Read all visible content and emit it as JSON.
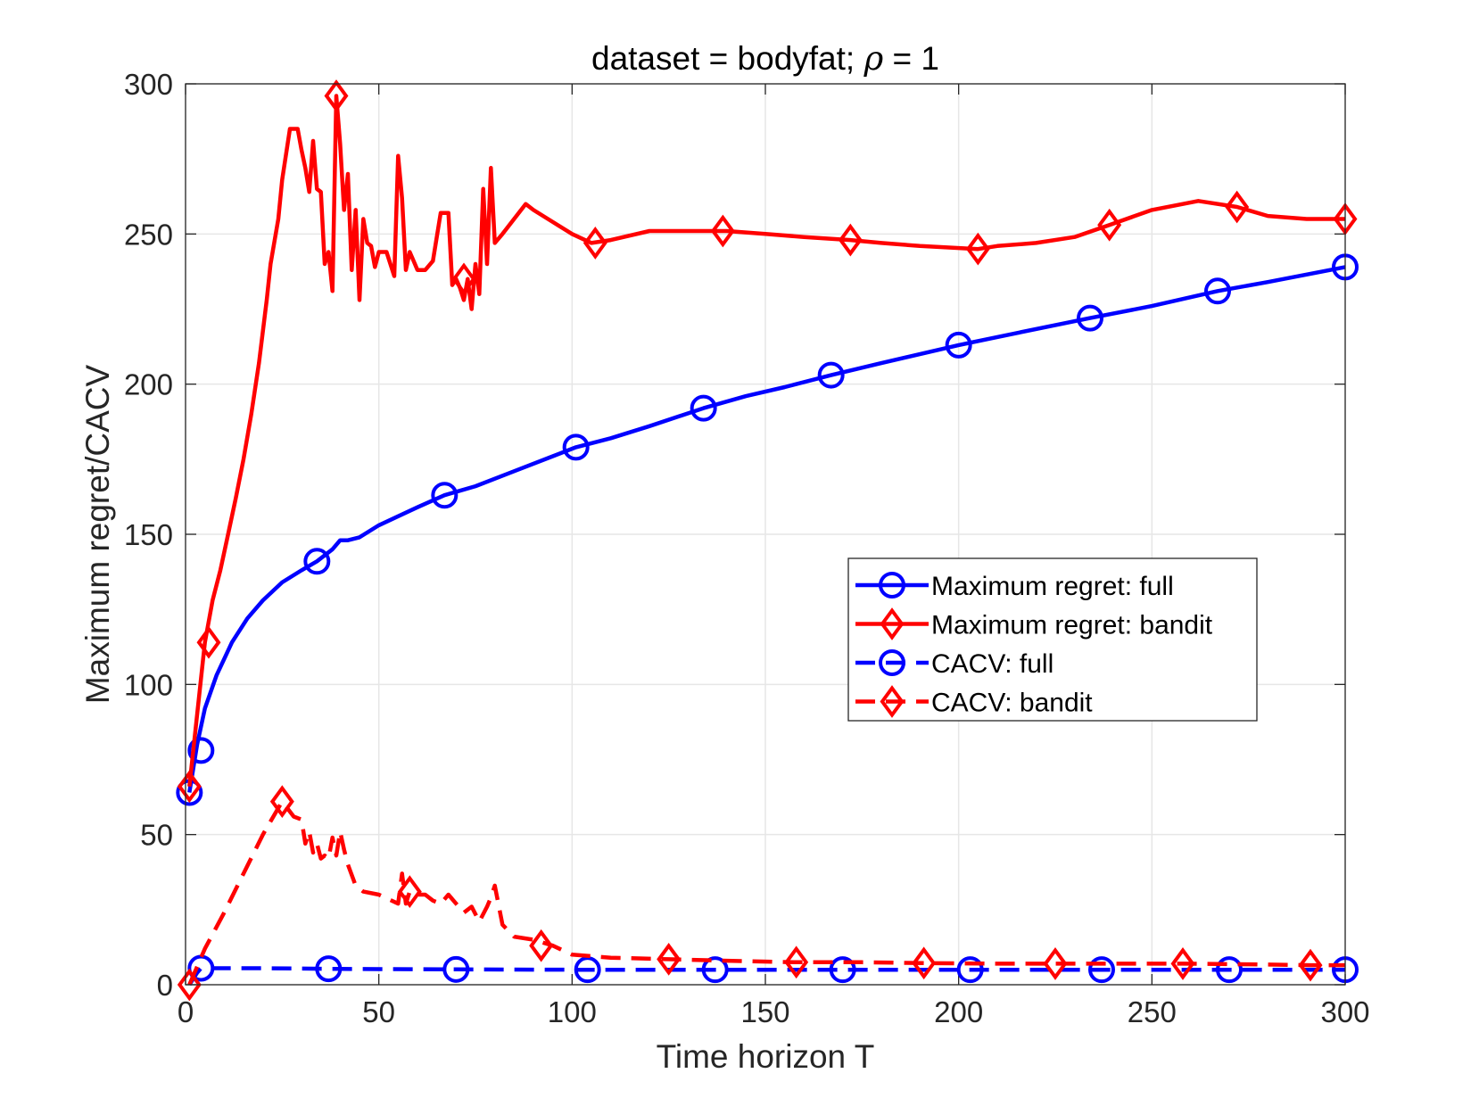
{
  "chart_data": {
    "type": "line",
    "title_prefix": "dataset = bodyfat; ",
    "title_symbol": "ρ",
    "title_suffix": " = 1",
    "xlabel": "Time horizon T",
    "ylabel": "Maximum regret/CACV",
    "xlim": [
      0,
      300
    ],
    "ylim": [
      0,
      300
    ],
    "xticks": [
      0,
      50,
      100,
      150,
      200,
      250,
      300
    ],
    "yticks": [
      0,
      50,
      100,
      150,
      200,
      250,
      300
    ],
    "xtick_labels": [
      "0",
      "50",
      "100",
      "150",
      "200",
      "250",
      "300"
    ],
    "ytick_labels": [
      "0",
      "50",
      "100",
      "150",
      "200",
      "250",
      "300"
    ],
    "grid": true,
    "legend_position": "right-center",
    "series": [
      {
        "name": "Maximum regret: full",
        "color": "#0000FF",
        "style": "solid",
        "marker": "circle",
        "x": [
          1,
          3,
          5,
          8,
          12,
          16,
          20,
          25,
          30,
          34,
          38,
          40,
          42,
          45,
          50,
          55,
          60,
          67,
          75,
          85,
          95,
          101,
          110,
          120,
          134,
          145,
          155,
          167,
          180,
          200,
          215,
          234,
          250,
          267,
          280,
          300
        ],
        "y": [
          64,
          80,
          92,
          103,
          114,
          122,
          128,
          134,
          138,
          141,
          145,
          148,
          148,
          149,
          153,
          156,
          159,
          163,
          166,
          171,
          176,
          179,
          182,
          186,
          192,
          196,
          199,
          203,
          207,
          213,
          217,
          222,
          226,
          231,
          234,
          239
        ],
        "marker_x": [
          1,
          4,
          34,
          67,
          101,
          134,
          167,
          200,
          234,
          267,
          300
        ],
        "marker_y": [
          64,
          78,
          141,
          163,
          179,
          192,
          203,
          213,
          222,
          231,
          239
        ]
      },
      {
        "name": "Maximum regret: bandit",
        "color": "#FF0000",
        "style": "solid",
        "marker": "diamond",
        "x": [
          1,
          3,
          5,
          7,
          9,
          11,
          13,
          15,
          17,
          19,
          21,
          22,
          24,
          25,
          27,
          29,
          30,
          31,
          32,
          33,
          34,
          35,
          36,
          37,
          38,
          39,
          40,
          41,
          42,
          43,
          44,
          45,
          46,
          47,
          48,
          49,
          50,
          52,
          54,
          55,
          56,
          57,
          58,
          59,
          60,
          62,
          64,
          66,
          68,
          69,
          70,
          71,
          72,
          73,
          74,
          75,
          76,
          77,
          78,
          79,
          80,
          82,
          85,
          88,
          90,
          95,
          100,
          105,
          110,
          120,
          130,
          140,
          150,
          160,
          172,
          180,
          190,
          205,
          210,
          220,
          230,
          239,
          250,
          262,
          272,
          280,
          290,
          300
        ],
        "y": [
          66,
          90,
          114,
          128,
          138,
          150,
          162,
          175,
          190,
          207,
          228,
          240,
          255,
          268,
          285,
          285,
          278,
          272,
          264,
          281,
          265,
          264,
          240,
          244,
          231,
          296,
          280,
          258,
          270,
          238,
          258,
          228,
          255,
          247,
          246,
          239,
          244,
          244,
          236,
          276,
          262,
          238,
          244,
          241,
          238,
          238,
          241,
          257,
          257,
          233,
          235,
          232,
          228,
          235,
          225,
          240,
          230,
          265,
          240,
          272,
          247,
          250,
          255,
          260,
          258,
          254,
          250,
          247,
          248,
          251,
          251,
          251,
          250,
          249,
          248,
          247,
          246,
          245,
          246,
          247,
          249,
          253,
          258,
          261,
          259,
          256,
          255,
          255
        ],
        "marker_x": [
          1,
          6,
          39,
          72,
          106,
          139,
          172,
          205,
          239,
          272,
          300
        ],
        "marker_y": [
          66,
          114,
          296,
          235,
          247,
          251,
          248,
          245,
          253,
          259,
          255
        ]
      },
      {
        "name": "CACV: full",
        "color": "#0000FF",
        "style": "dashed",
        "marker": "circle",
        "x": [
          1,
          3,
          4,
          10,
          20,
          37,
          50,
          70,
          100,
          137,
          170,
          203,
          237,
          270,
          300
        ],
        "y": [
          0,
          4,
          5.5,
          5.5,
          5.5,
          5.3,
          5.2,
          5.1,
          5.0,
          5.0,
          5.0,
          5.0,
          5.0,
          5.0,
          5.0
        ],
        "marker_x": [
          4,
          37,
          70,
          104,
          137,
          170,
          203,
          237,
          270,
          300
        ],
        "marker_y": [
          5.5,
          5.3,
          5.1,
          5.0,
          5.0,
          5.0,
          5.0,
          5.0,
          5.0,
          5.0
        ]
      },
      {
        "name": "CACV: bandit",
        "color": "#FF0000",
        "style": "dashed",
        "marker": "diamond",
        "x": [
          1,
          5,
          10,
          15,
          20,
          25,
          28,
          30,
          31,
          32,
          33,
          34,
          35,
          36,
          37,
          38,
          39,
          40,
          41,
          42,
          44,
          46,
          50,
          55,
          56,
          57,
          58,
          60,
          62,
          64,
          66,
          68,
          70,
          72,
          74,
          76,
          78,
          79,
          80,
          82,
          85,
          90,
          95,
          100,
          110,
          125,
          140,
          158,
          175,
          191,
          210,
          225,
          240,
          258,
          275,
          291,
          300
        ],
        "y": [
          0,
          12,
          24,
          37,
          50,
          61,
          56,
          55,
          47,
          51,
          44,
          47,
          42,
          43,
          42,
          49,
          43,
          51,
          45,
          40,
          33,
          31,
          30,
          27,
          37,
          27,
          31,
          30,
          30,
          28,
          27,
          30,
          27,
          24,
          26,
          21,
          26,
          29,
          33,
          20,
          16,
          15,
          13,
          10,
          9,
          8.5,
          8,
          7.5,
          7.5,
          7.2,
          7,
          7,
          7,
          7,
          6.8,
          6.5,
          6.5
        ],
        "marker_x": [
          1,
          25,
          58,
          92,
          125,
          158,
          191,
          225,
          258,
          291
        ],
        "marker_y": [
          0,
          61,
          31,
          13,
          8.5,
          7.5,
          7.2,
          7,
          7,
          6.5
        ]
      }
    ]
  }
}
